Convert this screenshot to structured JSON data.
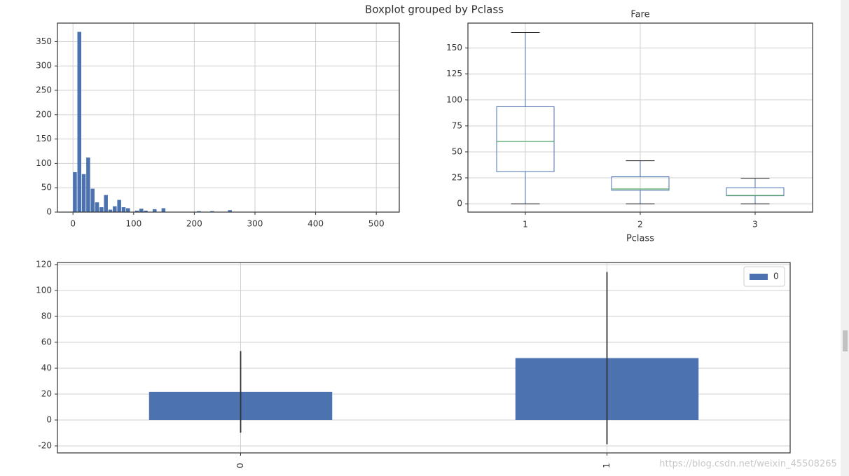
{
  "suptitle": "Boxplot grouped by Pclass",
  "watermark": "https://blog.csdn.net/weixin_45508265",
  "chart_data": [
    {
      "type": "histogram",
      "color": "#4c72b0",
      "grid": true,
      "bins": [
        0,
        7.3,
        14.6,
        21.9,
        29.2,
        36.5,
        43.8,
        51.1,
        58.4,
        65.7,
        73,
        80.3,
        87.6,
        94.9,
        102.2,
        109.5,
        116.8,
        124.1,
        131.4,
        138.7,
        146,
        153.3,
        160.6,
        167.9,
        175.2,
        182.5,
        189.8,
        197.1,
        204.4,
        211.7,
        219,
        226.3,
        233.6,
        240.9,
        248.2,
        255.5,
        262.8,
        270.1,
        277.4,
        284.7,
        292,
        299.3,
        306.6,
        313.9,
        321.2,
        328.5,
        335.8,
        343.1,
        350.4,
        357.7,
        365,
        372.3,
        379.6,
        386.9,
        394.2,
        401.5,
        408.8,
        416.1,
        423.4,
        430.7,
        438,
        445.3,
        452.6,
        459.9,
        467.2,
        474.5,
        481.8,
        489.1,
        496.4,
        503.7,
        511
      ],
      "values": [
        82,
        370,
        78,
        112,
        48,
        20,
        10,
        35,
        5,
        12,
        25,
        10,
        8,
        0,
        3,
        7,
        3,
        0,
        6,
        0,
        8,
        0,
        0,
        0,
        0,
        0,
        0,
        0,
        2,
        0,
        0,
        2,
        0,
        0,
        0,
        4,
        0,
        0,
        0,
        0,
        0,
        0,
        0,
        0,
        0,
        0,
        0,
        0,
        0,
        0,
        0,
        0,
        0,
        0,
        0,
        0,
        0,
        0,
        0,
        0,
        0,
        0,
        0,
        0,
        0,
        0,
        0,
        0,
        0,
        0
      ],
      "xlim": [
        -25.6,
        537.9
      ],
      "xticks": [
        0,
        100,
        200,
        300,
        400,
        500
      ],
      "ylim": [
        0,
        388
      ],
      "yticks": [
        0,
        50,
        100,
        150,
        200,
        250,
        300,
        350
      ]
    },
    {
      "type": "box",
      "title": "Fare",
      "x_label": "Pclass",
      "grid": true,
      "box_color": "#4c72b0",
      "median_color": "#55a868",
      "categories": [
        "1",
        "2",
        "3"
      ],
      "boxes": [
        {
          "whislo": 0,
          "q1": 31,
          "med": 60,
          "q3": 93.5,
          "whishi": 164.9
        },
        {
          "whislo": 0,
          "q1": 13,
          "med": 14.25,
          "q3": 26,
          "whishi": 41.5
        },
        {
          "whislo": 0,
          "q1": 7.75,
          "med": 8.05,
          "q3": 15.5,
          "whishi": 24.5
        }
      ],
      "ylim": [
        -8,
        174
      ],
      "yticks": [
        0,
        25,
        50,
        75,
        100,
        125,
        150
      ]
    },
    {
      "type": "bar",
      "grid": true,
      "legend": "upper right",
      "categories": [
        "0",
        "1"
      ],
      "series": [
        {
          "name": "0",
          "color": "#4c72b0",
          "error_color": "#333333",
          "values": [
            21.7,
            47.8
          ],
          "errors": [
            31.5,
            66.5
          ]
        }
      ],
      "ylim": [
        -25.4,
        121.6
      ],
      "yticks": [
        -20,
        0,
        20,
        40,
        60,
        80,
        100,
        120
      ]
    }
  ]
}
